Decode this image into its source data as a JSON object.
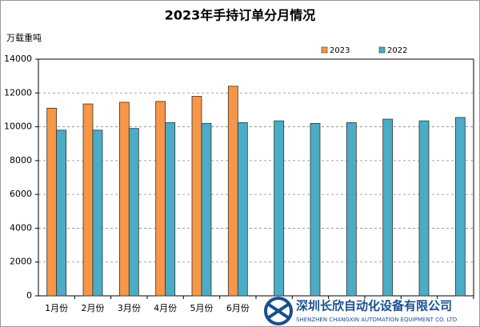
{
  "chart_data": {
    "type": "bar",
    "title": "2023年手持订单分月情况",
    "y_label": "万载重吨",
    "categories": [
      "1月份",
      "2月份",
      "3月份",
      "4月份",
      "5月份",
      "6月份",
      null,
      null,
      null,
      null,
      null,
      null
    ],
    "series": [
      {
        "name": "2023",
        "color": "#f79646",
        "values": [
          11100,
          11350,
          11450,
          11500,
          11800,
          12400,
          null,
          null,
          null,
          null,
          null,
          null
        ]
      },
      {
        "name": "2022",
        "color": "#4bacc6",
        "values": [
          9800,
          9800,
          9900,
          10250,
          10200,
          10250,
          10350,
          10200,
          10250,
          10450,
          10350,
          10550
        ]
      }
    ],
    "ylim": [
      0,
      14000
    ],
    "yticks": [
      0,
      2000,
      4000,
      6000,
      8000,
      10000,
      12000,
      14000
    ],
    "grid": true,
    "legend": "top-right"
  },
  "watermark": {
    "name": "深圳长欣自动化设备有限公司",
    "english": "SHENZHEN CHANGXIN AUTOMATION EQUIPMENT CO. LTD"
  }
}
